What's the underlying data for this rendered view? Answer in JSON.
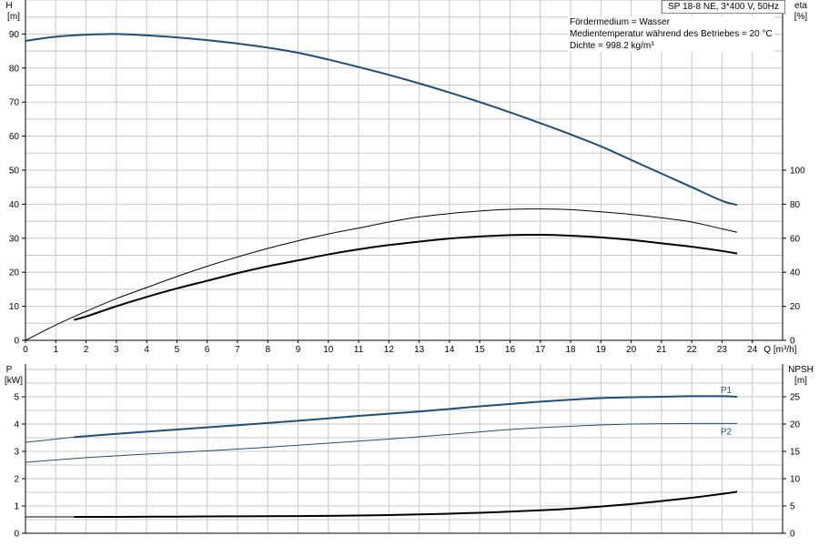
{
  "header": {
    "title": "SP 18-8 NE, 3*400 V, 50Hz",
    "info_lines": [
      "Fördermedium = Wasser",
      "Medientemperatur während des Betriebes = 20 °C",
      "Dichte = 998.2 kg/m³"
    ]
  },
  "colors": {
    "head_curve": "#1f4e79",
    "eta_curves": "#000000",
    "p1_curve": "#1f4e79",
    "p2_curve": "#1f4e79",
    "npsh_curve": "#000000",
    "grid": "#c8c8c8",
    "series_label": "#1f4e79"
  },
  "chart_data": [
    {
      "type": "line",
      "panel": "top",
      "x_axis": {
        "label": "Q [m³/h]",
        "lim": [
          0,
          25
        ],
        "ticks": [
          0,
          1,
          2,
          3,
          4,
          5,
          6,
          7,
          8,
          9,
          10,
          11,
          12,
          13,
          14,
          15,
          16,
          17,
          18,
          19,
          20,
          21,
          22,
          23,
          24
        ]
      },
      "y_left": {
        "label_top": "H",
        "label_unit": "[m]",
        "lim": [
          0,
          100
        ],
        "ticks": [
          0,
          10,
          20,
          30,
          40,
          50,
          60,
          70,
          80,
          90
        ]
      },
      "y_right": {
        "label_top": "eta",
        "label_unit": "[%]",
        "lim": [
          0,
          200
        ],
        "ticks": [
          0,
          20,
          40,
          60,
          80,
          100
        ]
      },
      "grid": true,
      "series": [
        {
          "key": "H",
          "axis": "left",
          "stroke_width": 2,
          "x": [
            0,
            1,
            2,
            3,
            4,
            5,
            6,
            7,
            8,
            9,
            10,
            11,
            12,
            13,
            14,
            15,
            16,
            17,
            18,
            19,
            20,
            21,
            22,
            23,
            23.5
          ],
          "y": [
            88,
            89.2,
            89.8,
            90,
            89.6,
            89,
            88.2,
            87.2,
            86,
            84.5,
            82.5,
            80.3,
            78,
            75.5,
            72.8,
            70,
            67,
            63.8,
            60.5,
            57,
            53,
            49,
            45,
            41,
            39.8
          ]
        },
        {
          "key": "eta_thin",
          "axis": "right",
          "stroke_width": 1,
          "x": [
            0,
            1,
            2,
            3,
            4,
            5,
            6,
            7,
            8,
            9,
            10,
            11,
            12,
            13,
            14,
            15,
            16,
            17,
            18,
            19,
            20,
            21,
            22,
            23,
            23.5
          ],
          "y": [
            0,
            9,
            17,
            24.5,
            31,
            37.5,
            43.5,
            49,
            54,
            58.5,
            62.5,
            66,
            69.5,
            72.5,
            74.5,
            76,
            77,
            77.2,
            76.8,
            75.5,
            74,
            72,
            69.5,
            65.5,
            63.5
          ]
        },
        {
          "key": "eta_thick",
          "axis": "right",
          "stroke_width": 2,
          "x": [
            1.6,
            2,
            3,
            4,
            5,
            6,
            7,
            8,
            9,
            10,
            11,
            12,
            13,
            14,
            15,
            16,
            17,
            18,
            19,
            20,
            21,
            22,
            23,
            23.5
          ],
          "y": [
            12,
            14,
            20,
            25.5,
            30.5,
            35,
            39.5,
            43.5,
            47,
            50.5,
            53.5,
            56,
            58,
            59.8,
            61,
            61.8,
            62,
            61.5,
            60.5,
            59,
            57,
            55,
            52.5,
            51
          ]
        }
      ]
    },
    {
      "type": "line",
      "panel": "bottom",
      "x_axis": {
        "lim": [
          0,
          25
        ]
      },
      "y_left": {
        "label_top": "P",
        "label_unit": "[kW]",
        "lim": [
          0,
          6.2
        ],
        "ticks": [
          0,
          1,
          2,
          3,
          4,
          5
        ]
      },
      "y_right": {
        "label_top": "NPSH",
        "label_unit": "[m]",
        "lim": [
          0,
          31
        ],
        "ticks": [
          0,
          5,
          10,
          15,
          20,
          25
        ]
      },
      "grid": true,
      "series": [
        {
          "name": "P1",
          "key": "P1",
          "axis": "left",
          "stroke_width": 2,
          "x": [
            0,
            1.6,
            3,
            5,
            7,
            9,
            11,
            13,
            15,
            17,
            19,
            21,
            22,
            23,
            23.5
          ],
          "y": [
            3.33,
            3.52,
            3.64,
            3.8,
            3.96,
            4.12,
            4.3,
            4.46,
            4.65,
            4.82,
            4.95,
            5.0,
            5.02,
            5.02,
            5.0
          ],
          "partial_from": 1.6
        },
        {
          "name": "P2",
          "key": "P2",
          "axis": "left",
          "stroke_width": 1,
          "x": [
            0,
            2,
            4,
            6,
            8,
            10,
            12,
            14,
            16,
            18,
            20,
            22,
            23.5
          ],
          "y": [
            2.6,
            2.77,
            2.9,
            3.02,
            3.15,
            3.3,
            3.45,
            3.62,
            3.8,
            3.92,
            4.0,
            4.02,
            4.02
          ]
        },
        {
          "key": "NPSH",
          "axis": "right",
          "stroke_width": 2,
          "x": [
            0,
            1.6,
            3,
            5,
            7,
            9,
            11,
            13,
            15,
            17,
            18,
            19,
            20,
            21,
            22,
            23,
            23.5
          ],
          "y": [
            3.0,
            3.0,
            3.0,
            3.05,
            3.1,
            3.15,
            3.25,
            3.45,
            3.75,
            4.2,
            4.5,
            4.9,
            5.35,
            5.9,
            6.5,
            7.2,
            7.6
          ]
        }
      ]
    }
  ]
}
